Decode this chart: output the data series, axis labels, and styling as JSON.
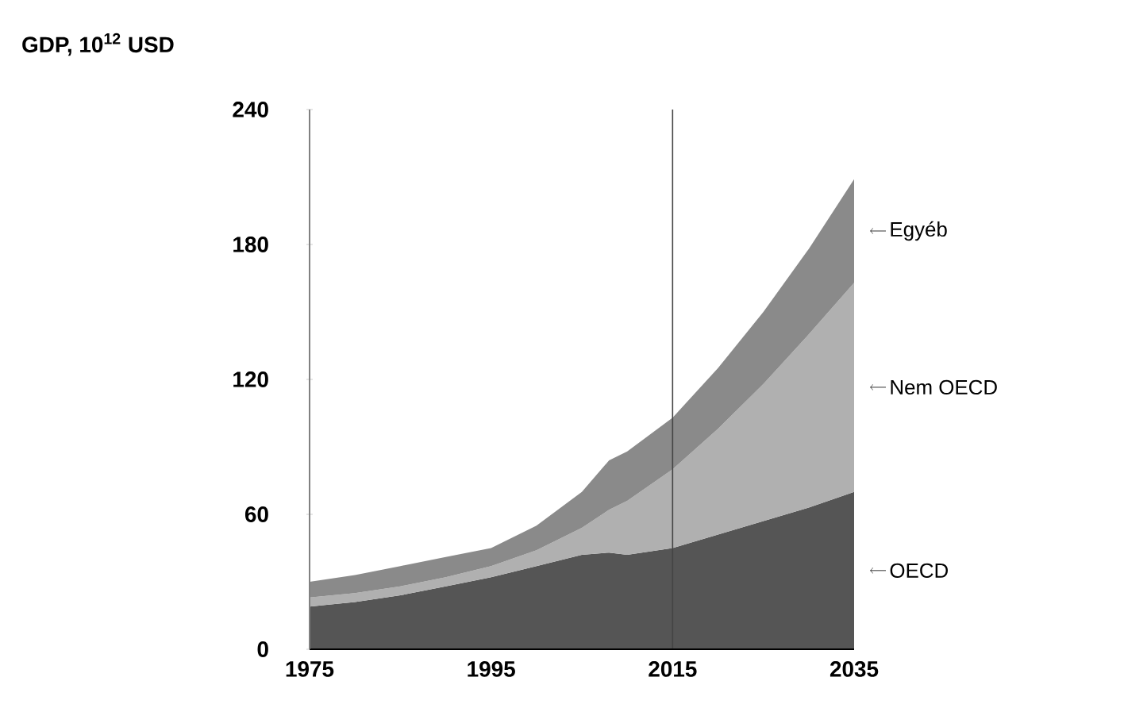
{
  "chart_data": {
    "type": "area",
    "title": "**GDP, 10$^{12}$ USD**",
    "stacked": true,
    "x": [
      1975,
      1980,
      1985,
      1990,
      1995,
      2000,
      2005,
      2008,
      2010,
      2015,
      2020,
      2025,
      2030,
      2035
    ],
    "series": [
      {
        "name": "OECD",
        "color": "#555555",
        "values": [
          19,
          21,
          24,
          28,
          32,
          37,
          42,
          43,
          42,
          45,
          51,
          57,
          63,
          70
        ]
      },
      {
        "name": "Nem OECD",
        "color": "#b0b0b0",
        "values": [
          4,
          4,
          4,
          4,
          5,
          7,
          12,
          19,
          24,
          35,
          47,
          61,
          77,
          93
        ]
      },
      {
        "name": "Egyéb",
        "color": "#8a8a8a",
        "values": [
          7,
          8,
          9,
          9,
          8,
          11,
          16,
          22,
          22,
          23,
          27,
          32,
          38,
          46
        ]
      }
    ],
    "xlim": [
      1975,
      2035
    ],
    "ylim": [
      0,
      240
    ],
    "xticks": [
      1975,
      1995,
      2015,
      2035
    ],
    "yticks": [
      0,
      60,
      120,
      180,
      240
    ],
    "ref_lines": [
      {
        "axis": "x",
        "value": 2015,
        "color": "#444444"
      }
    ]
  }
}
